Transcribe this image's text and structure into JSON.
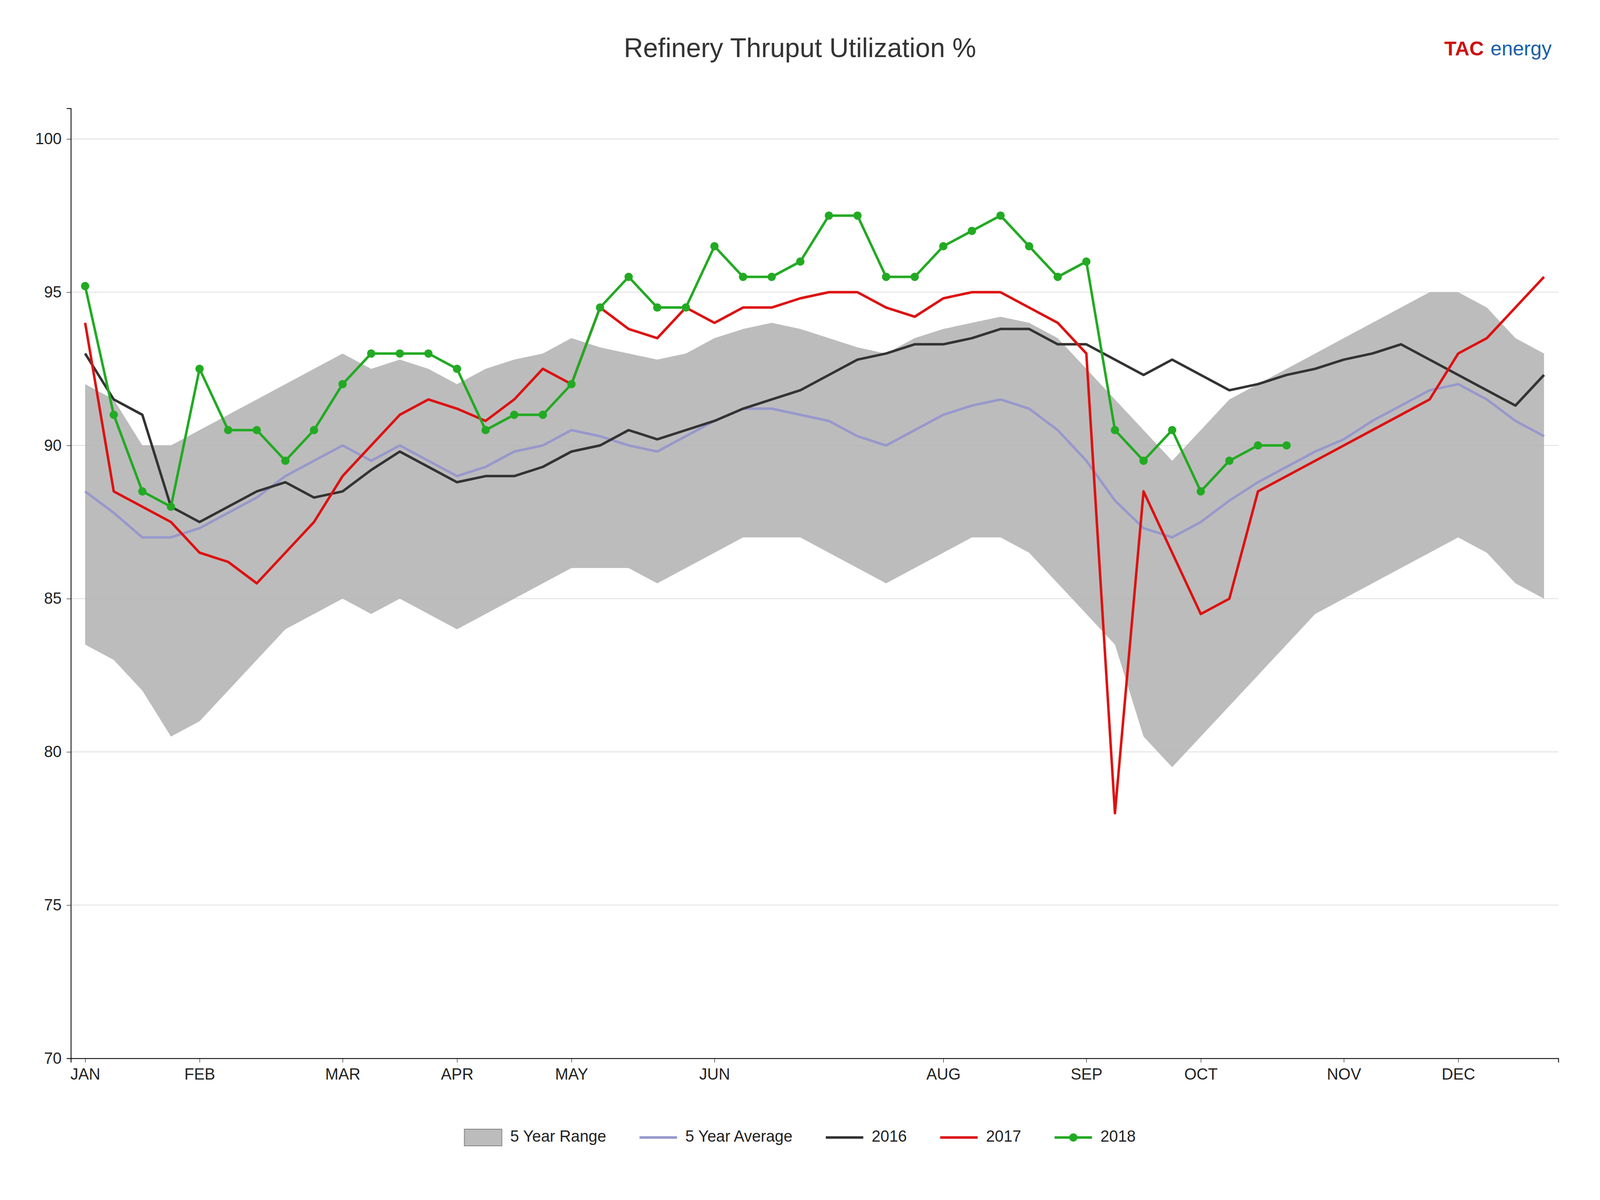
{
  "chart_data": {
    "type": "line",
    "title": "Refinery Thruput Utilization %",
    "annotations": [
      {
        "text": "TAC",
        "color": "#cc1111"
      },
      {
        "text": "energy",
        "color": "#1a5fa8"
      }
    ],
    "categories": [
      "JAN",
      null,
      null,
      null,
      "FEB",
      null,
      null,
      null,
      null,
      "MAR",
      null,
      null,
      null,
      "APR",
      null,
      null,
      null,
      "MAY",
      null,
      null,
      null,
      null,
      "JUN",
      null,
      null,
      null,
      null,
      null,
      null,
      null,
      "AUG",
      null,
      null,
      null,
      null,
      "SEP",
      null,
      null,
      null,
      "OCT",
      null,
      null,
      null,
      null,
      "NOV",
      null,
      null,
      null,
      "DEC",
      null,
      null,
      null
    ],
    "series": [
      {
        "name": "5 Year Range",
        "type": "range",
        "color": "#b0b0b0",
        "lower": [
          83.5,
          83.0,
          82.0,
          80.5,
          81.0,
          82.0,
          83.0,
          84.0,
          84.5,
          85.0,
          84.5,
          85.0,
          84.5,
          84.0,
          84.5,
          85.0,
          85.5,
          86.0,
          86.0,
          86.0,
          85.5,
          86.0,
          86.5,
          87.0,
          87.0,
          87.0,
          86.5,
          86.0,
          85.5,
          86.0,
          86.5,
          87.0,
          87.0,
          86.5,
          85.5,
          84.5,
          83.5,
          80.5,
          79.5,
          80.5,
          81.5,
          82.5,
          83.5,
          84.5,
          85.0,
          85.5,
          86.0,
          86.5,
          87.0,
          86.5,
          85.5,
          85.0
        ],
        "upper": [
          92.0,
          91.5,
          90.0,
          90.0,
          90.5,
          91.0,
          91.5,
          92.0,
          92.5,
          93.0,
          92.5,
          92.8,
          92.5,
          92.0,
          92.5,
          92.8,
          93.0,
          93.5,
          93.2,
          93.0,
          92.8,
          93.0,
          93.5,
          93.8,
          94.0,
          93.8,
          93.5,
          93.2,
          93.0,
          93.5,
          93.8,
          94.0,
          94.2,
          94.0,
          93.5,
          92.5,
          91.5,
          90.5,
          89.5,
          90.5,
          91.5,
          92.0,
          92.5,
          93.0,
          93.5,
          94.0,
          94.5,
          95.0,
          95.0,
          94.5,
          93.5,
          93.0
        ]
      },
      {
        "name": "5 Year Average",
        "color": "#9898cc",
        "values": [
          88.5,
          87.8,
          87.0,
          87.0,
          87.3,
          87.8,
          88.3,
          89.0,
          89.5,
          90.0,
          89.5,
          90.0,
          89.5,
          89.0,
          89.3,
          89.8,
          90.0,
          90.5,
          90.3,
          90.0,
          89.8,
          90.3,
          90.8,
          91.2,
          91.2,
          91.0,
          90.8,
          90.3,
          90.0,
          90.5,
          91.0,
          91.3,
          91.5,
          91.2,
          90.5,
          89.5,
          88.2,
          87.3,
          87.0,
          87.5,
          88.2,
          88.8,
          89.3,
          89.8,
          90.2,
          90.8,
          91.3,
          91.8,
          92.0,
          91.5,
          90.8,
          90.3
        ]
      },
      {
        "name": "2016",
        "color": "#333333",
        "values": [
          93.0,
          91.5,
          91.0,
          88.0,
          87.5,
          88.0,
          88.5,
          88.8,
          88.3,
          88.5,
          89.2,
          89.8,
          89.3,
          88.8,
          89.0,
          89.0,
          89.3,
          89.8,
          90.0,
          90.5,
          90.2,
          90.5,
          90.8,
          91.2,
          91.5,
          91.8,
          92.3,
          92.8,
          93.0,
          93.3,
          93.3,
          93.5,
          93.8,
          93.8,
          93.3,
          93.3,
          92.8,
          92.3,
          92.8,
          92.3,
          91.8,
          92.0,
          92.3,
          92.5,
          92.8,
          93.0,
          93.3,
          92.8,
          92.3,
          91.8,
          91.3,
          92.3
        ]
      },
      {
        "name": "2017",
        "color": "#dd1111",
        "values": [
          94.0,
          88.5,
          88.0,
          87.5,
          86.5,
          86.2,
          85.5,
          86.5,
          87.5,
          89.0,
          90.0,
          91.0,
          91.5,
          91.2,
          90.8,
          91.5,
          92.5,
          92.0,
          94.5,
          93.8,
          93.5,
          94.5,
          94.0,
          94.5,
          94.5,
          94.8,
          95.0,
          95.0,
          94.5,
          94.2,
          94.8,
          95.0,
          95.0,
          94.5,
          94.0,
          93.0,
          78.0,
          88.5,
          86.5,
          84.5,
          85.0,
          88.5,
          89.0,
          89.5,
          90.0,
          90.5,
          91.0,
          91.5,
          93.0,
          93.5,
          94.5,
          95.5
        ]
      },
      {
        "name": "2018",
        "color": "#22aa22",
        "marker": "circle",
        "values": [
          95.2,
          91.0,
          88.5,
          88.0,
          92.5,
          90.5,
          90.5,
          89.5,
          90.5,
          92.0,
          93.0,
          93.0,
          93.0,
          92.5,
          90.5,
          91.0,
          91.0,
          92.0,
          94.5,
          95.5,
          94.5,
          94.5,
          96.5,
          95.5,
          95.5,
          96.0,
          97.5,
          97.5,
          95.5,
          95.5,
          96.5,
          97.0,
          97.5,
          96.5,
          95.5,
          96.0,
          90.5,
          89.5,
          90.5,
          88.5,
          89.5,
          90.0,
          90.0,
          null,
          null,
          null,
          null,
          null,
          null,
          null,
          null,
          null
        ]
      }
    ],
    "ylim": [
      70,
      101
    ],
    "yticks": [
      70,
      75,
      80,
      85,
      90,
      95,
      100
    ],
    "grid": true,
    "legend": "bottom"
  }
}
